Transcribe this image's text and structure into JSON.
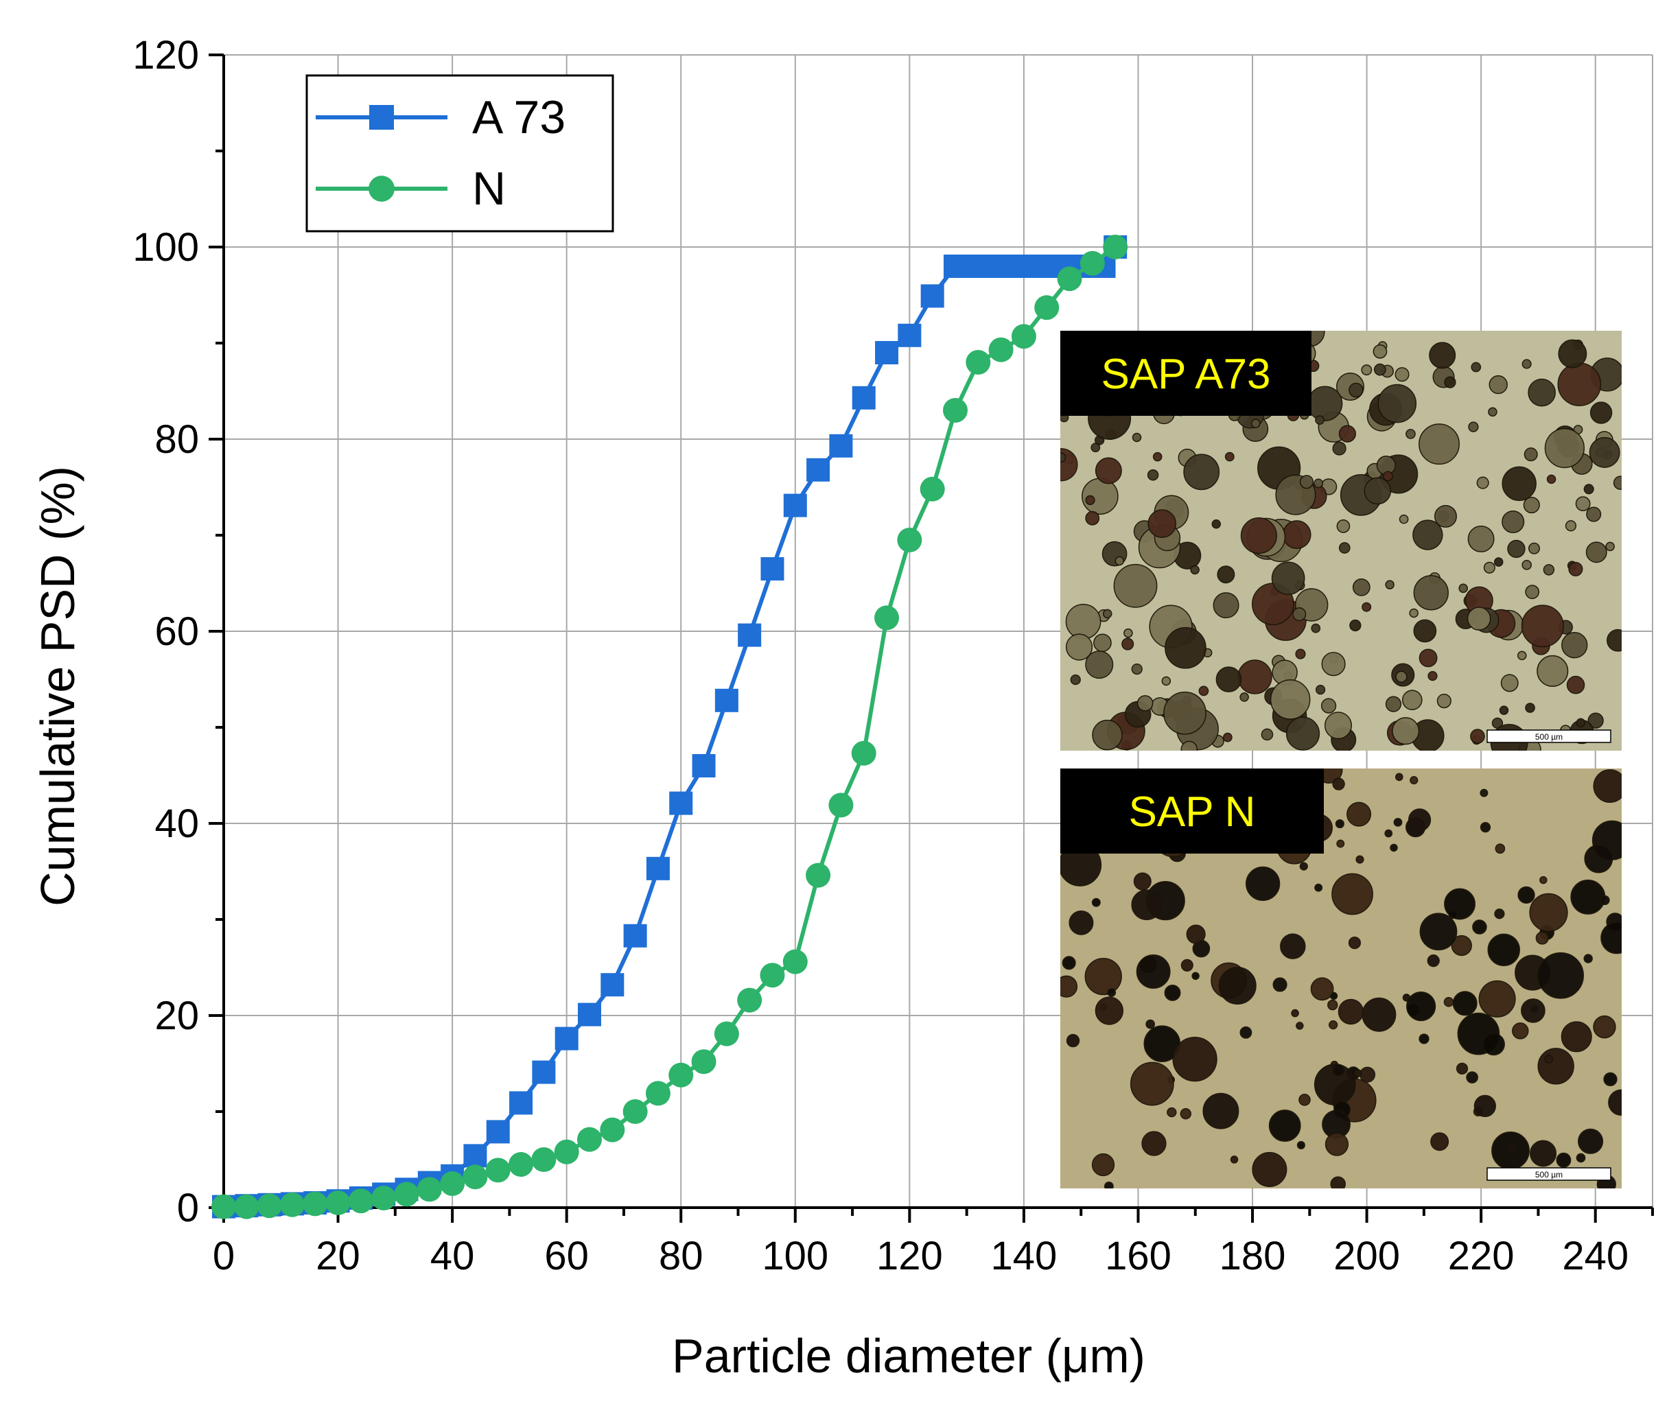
{
  "chart_data": {
    "type": "line",
    "xlabel": "Particle diameter (μm)",
    "ylabel": "Cumulative PSD (%)",
    "xlim": [
      0,
      250
    ],
    "ylim": [
      0,
      120
    ],
    "xticks": [
      0,
      20,
      40,
      60,
      80,
      100,
      120,
      140,
      160,
      180,
      200,
      220,
      240
    ],
    "yticks": [
      0,
      20,
      40,
      60,
      80,
      100,
      120
    ],
    "grid": true,
    "legend_position": "top-left",
    "series": [
      {
        "name": "A 73",
        "color": "#1f6fd6",
        "marker": "square",
        "x": [
          0,
          4,
          8,
          12,
          16,
          20,
          24,
          28,
          32,
          36,
          40,
          44,
          48,
          52,
          56,
          60,
          64,
          68,
          72,
          76,
          80,
          84,
          88,
          92,
          96,
          100,
          104,
          108,
          112,
          116,
          120,
          124,
          128,
          130,
          132,
          134,
          136,
          138,
          140,
          142,
          144,
          146,
          148,
          150,
          152,
          154,
          156
        ],
        "y": [
          0.1,
          0.2,
          0.3,
          0.4,
          0.5,
          0.7,
          1.0,
          1.4,
          1.9,
          2.6,
          3.3,
          5.4,
          7.9,
          10.9,
          14.1,
          17.6,
          20.1,
          23.2,
          28.3,
          35.3,
          42.1,
          46.0,
          52.8,
          59.6,
          66.5,
          73.1,
          76.8,
          79.3,
          84.3,
          89.0,
          90.8,
          94.9,
          98.0,
          98.0,
          98.0,
          98.0,
          98.0,
          98.0,
          98.0,
          98.0,
          98.0,
          98.0,
          98.0,
          98.0,
          98.0,
          98.0,
          100
        ]
      },
      {
        "name": "N",
        "color": "#2db36a",
        "marker": "circle",
        "x": [
          0,
          4,
          8,
          12,
          16,
          20,
          24,
          28,
          32,
          36,
          40,
          44,
          48,
          52,
          56,
          60,
          64,
          68,
          72,
          76,
          80,
          84,
          88,
          92,
          96,
          100,
          104,
          108,
          112,
          116,
          120,
          124,
          128,
          132,
          136,
          140,
          144,
          148,
          152,
          156
        ],
        "y": [
          0.1,
          0.1,
          0.2,
          0.3,
          0.4,
          0.5,
          0.7,
          1.0,
          1.4,
          1.9,
          2.5,
          3.2,
          3.9,
          4.5,
          5.0,
          5.8,
          7.1,
          8.1,
          10.0,
          11.9,
          13.8,
          15.2,
          18.1,
          21.6,
          24.2,
          25.6,
          34.6,
          41.9,
          47.3,
          61.4,
          69.5,
          74.8,
          83.0,
          88.0,
          89.3,
          90.7,
          93.7,
          96.7,
          98.3,
          100
        ]
      }
    ]
  },
  "inset_top": {
    "label": "SAP A73",
    "scale_text": "500 µm"
  },
  "inset_bottom": {
    "label": "SAP N",
    "scale_text": "500 µm"
  }
}
